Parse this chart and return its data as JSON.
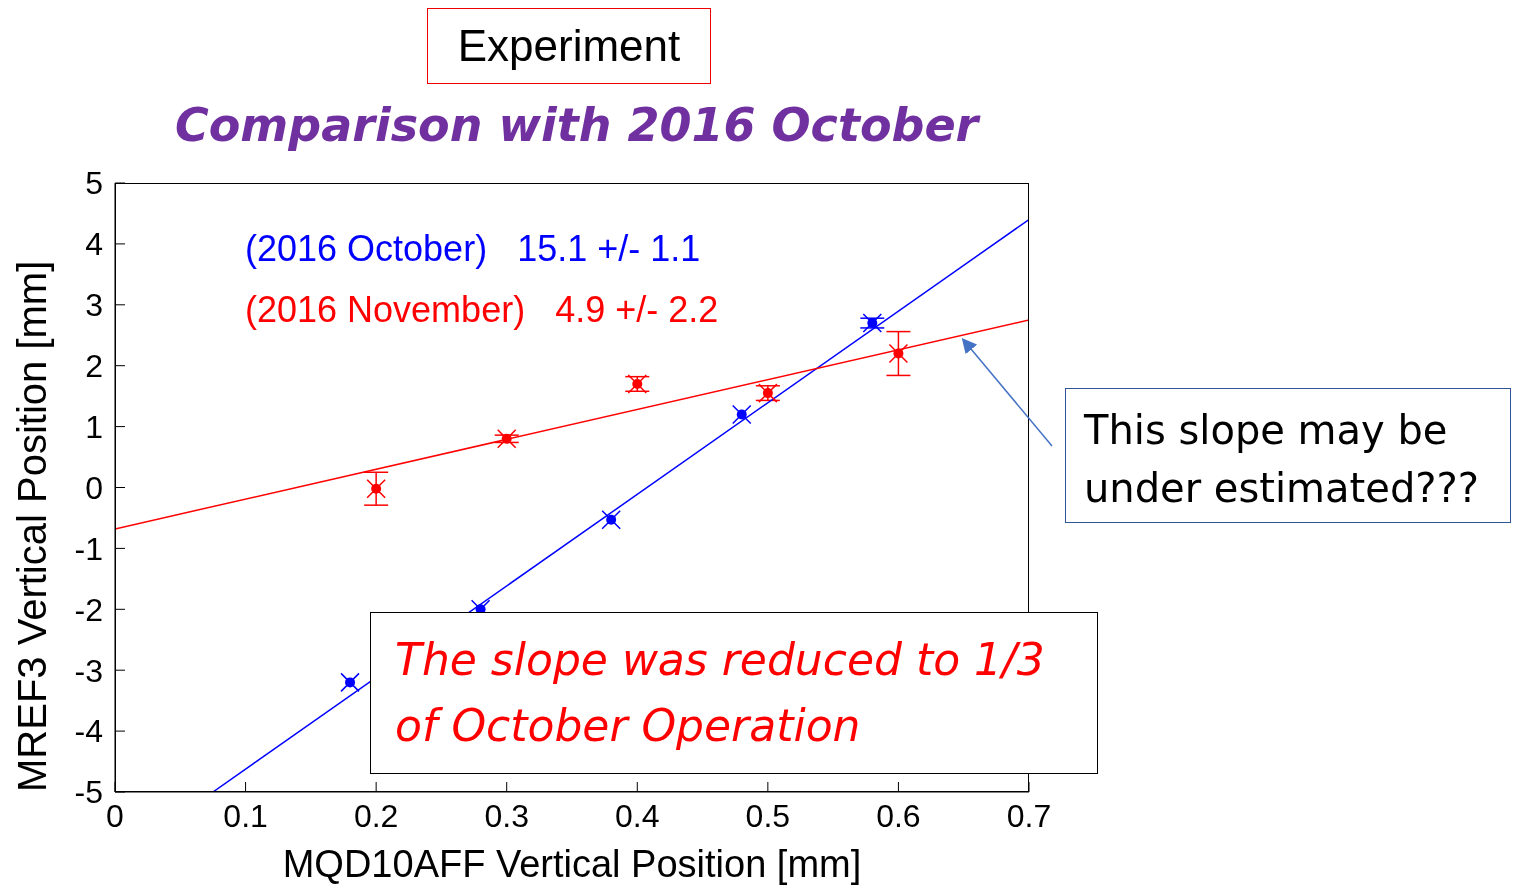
{
  "chart_data": {
    "type": "scatter",
    "title": "Comparison with 2016 October",
    "xlabel": "MQD10AFF Vertical Position [mm]",
    "ylabel": "MREF3 Vertical Position [mm]",
    "xlim": [
      0,
      0.7
    ],
    "xticks": [
      0,
      0.1,
      0.2,
      0.3,
      0.4,
      0.5,
      0.6,
      0.7
    ],
    "ylim": [
      -5,
      5
    ],
    "yticks": [
      -5,
      -4,
      -3,
      -2,
      -1,
      0,
      1,
      2,
      3,
      4,
      5
    ],
    "grid": false,
    "legend": "top left",
    "marker": "circle",
    "series": [
      {
        "color": "#0000ff",
        "x": [
          0.18,
          0.28,
          0.38,
          0.48,
          0.58
        ],
        "values": [
          -3.2,
          -2.0,
          -0.53,
          1.2,
          2.7
        ],
        "errors": [
          null,
          null,
          null,
          null,
          0.08
        ]
      },
      {
        "color": "#ff0000",
        "x": [
          0.2,
          0.3,
          0.4,
          0.5,
          0.6
        ],
        "values": [
          -0.02,
          0.8,
          1.7,
          1.55,
          2.2
        ],
        "errors": [
          0.27,
          0.06,
          0.12,
          0.12,
          0.36
        ]
      },
      {
        "type": "line",
        "marker": "none",
        "name": "(2016 October)   15.1 +/- 1.1",
        "color": "#0000ff",
        "x": [
          0.075,
          0.7
        ],
        "values": [
          -5,
          4.4
        ]
      },
      {
        "type": "line",
        "marker": "none",
        "name": "(2016 November)   4.9 +/- 2.2",
        "color": "#ff0000",
        "x": [
          0,
          0.7
        ],
        "values": [
          -0.68,
          2.75
        ]
      }
    ],
    "annotations": [
      "Experiment",
      {
        "text": "This slope may be under estimated???",
        "x": 0.65,
        "y": 2.55
      },
      "The slope was reduced to 1/3 of October Operation"
    ]
  }
}
